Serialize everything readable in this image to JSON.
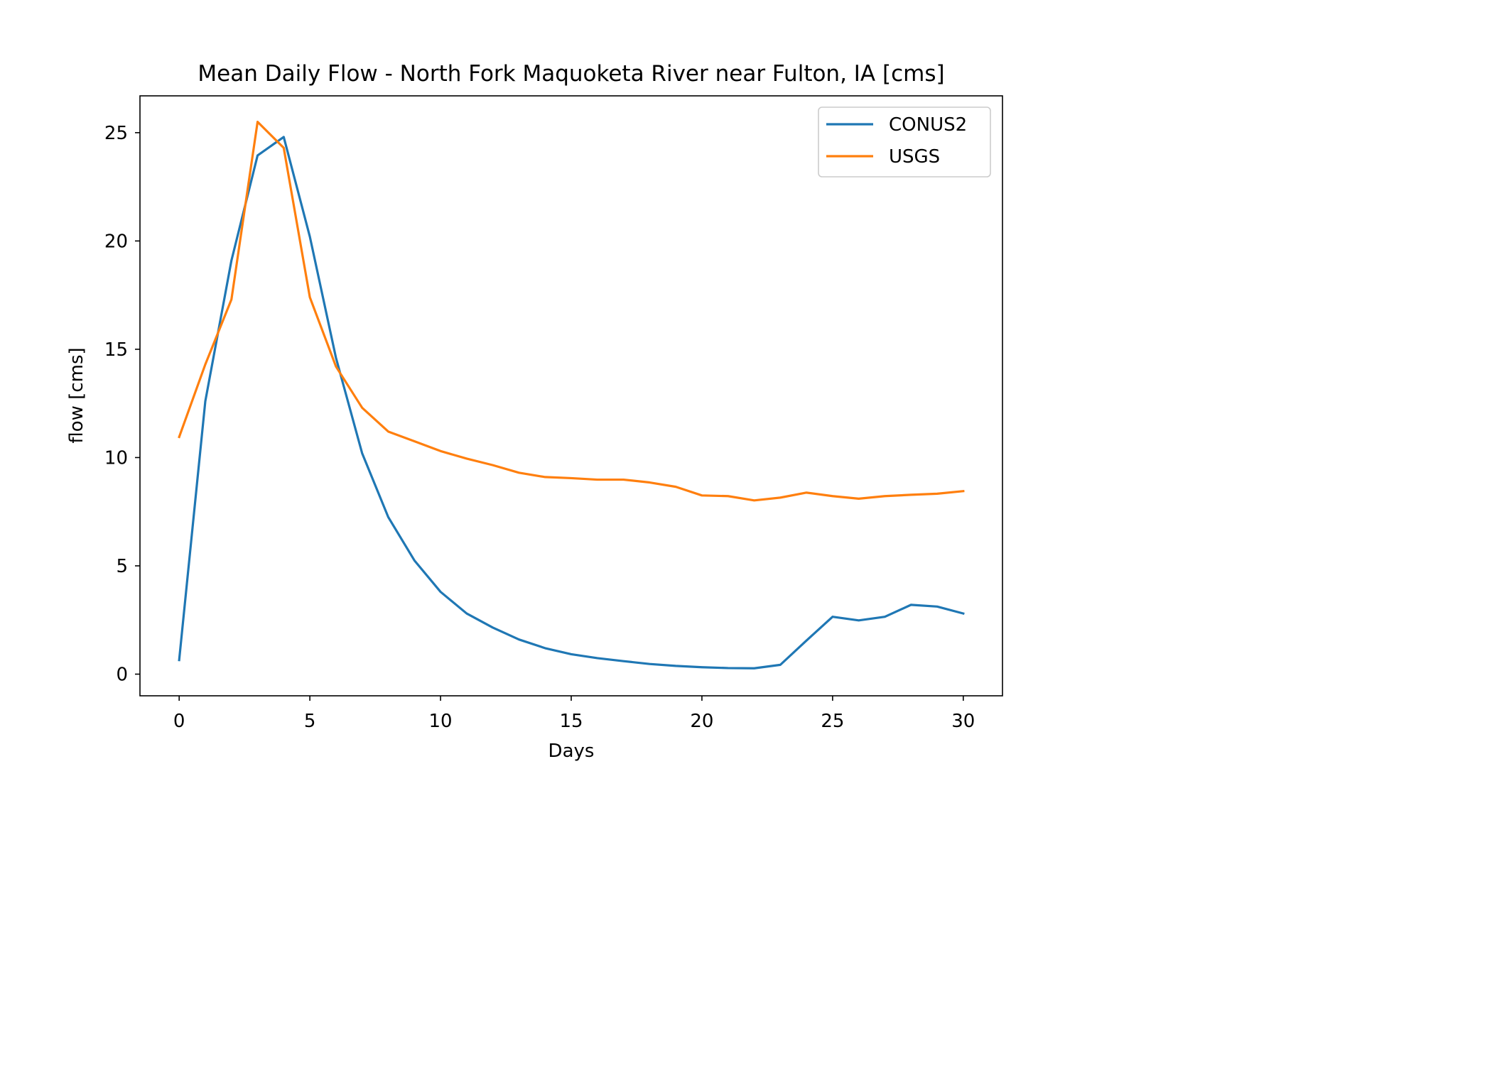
{
  "chart_data": {
    "type": "line",
    "title": "Mean Daily Flow - North Fork Maquoketa River near Fulton, IA [cms]",
    "xlabel": "Days",
    "ylabel": "flow [cms]",
    "xlim": [
      -1.5,
      31.5
    ],
    "ylim": [
      -1.0,
      26.7
    ],
    "xticks": [
      0,
      5,
      10,
      15,
      20,
      25,
      30
    ],
    "yticks": [
      0,
      5,
      10,
      15,
      20,
      25
    ],
    "grid": false,
    "legend_position": "top-right",
    "x": [
      0,
      1,
      2,
      3,
      4,
      5,
      6,
      7,
      8,
      9,
      10,
      11,
      12,
      13,
      14,
      15,
      16,
      17,
      18,
      19,
      20,
      21,
      22,
      23,
      24,
      25,
      26,
      27,
      28,
      29,
      30
    ],
    "series": [
      {
        "name": "CONUS2",
        "color": "#1f77b4",
        "values": [
          0.65,
          12.6,
          19.1,
          23.95,
          24.8,
          20.2,
          14.6,
          10.2,
          7.25,
          5.25,
          3.8,
          2.8,
          2.15,
          1.6,
          1.2,
          0.92,
          0.74,
          0.6,
          0.47,
          0.38,
          0.32,
          0.28,
          0.27,
          0.43,
          1.55,
          2.65,
          2.48,
          2.65,
          3.2,
          3.12,
          2.8
        ]
      },
      {
        "name": "USGS",
        "color": "#ff7f0e",
        "values": [
          10.95,
          14.3,
          17.3,
          25.5,
          24.3,
          17.4,
          14.2,
          12.3,
          11.2,
          10.75,
          10.3,
          9.95,
          9.65,
          9.3,
          9.1,
          9.05,
          8.98,
          8.98,
          8.85,
          8.65,
          8.25,
          8.22,
          8.02,
          8.15,
          8.38,
          8.22,
          8.1,
          8.22,
          8.28,
          8.33,
          8.45
        ]
      }
    ]
  }
}
